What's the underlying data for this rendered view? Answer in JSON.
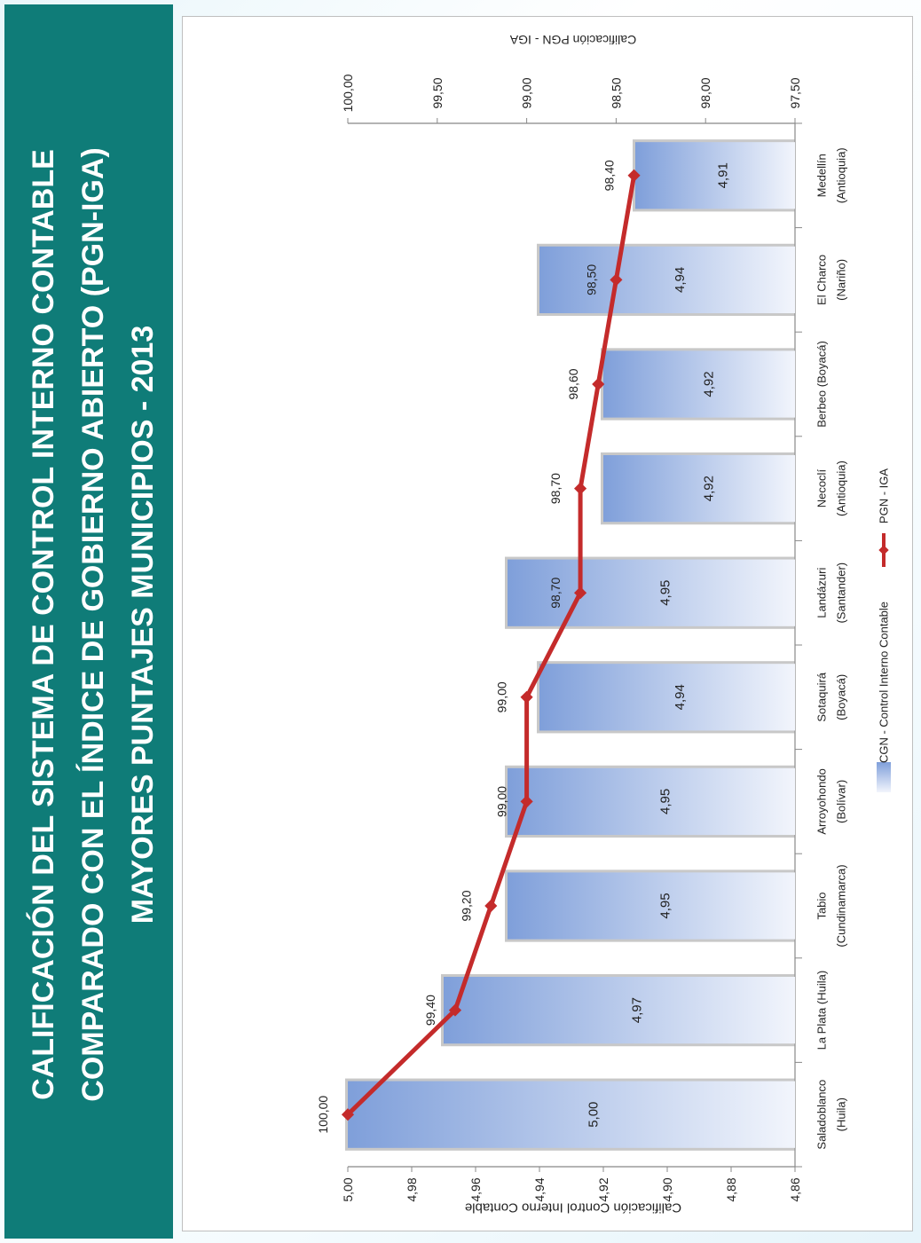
{
  "title": {
    "line1": "CALIFICACIÓN DEL SISTEMA DE CONTROL INTERNO CONTABLE",
    "line2": "COMPARADO CON EL ÍNDICE DE GOBIERNO ABIERTO (PGN-IGA)",
    "line3": "MAYORES PUNTAJES  MUNICIPIOS - 2013"
  },
  "colors": {
    "band": "#0f7c78",
    "bar_dark": "#7f9fda",
    "bar_light": "#f2f5fc",
    "line": "#c42b2b"
  },
  "chart_data": {
    "type": "bar",
    "categories": [
      [
        "Saladoblanco",
        "(Huila)"
      ],
      [
        "La Plata (Huila)"
      ],
      [
        "Tabio",
        "(Cundinamarca)"
      ],
      [
        "Arroyohondo",
        "(Bolívar)"
      ],
      [
        "Sotaquirá",
        "(Boyacá)"
      ],
      [
        "Landázuri",
        "(Santander)"
      ],
      [
        "Necoclí",
        "(Antioquia)"
      ],
      [
        "Berbeo (Boyacá)"
      ],
      [
        "El Charco",
        "(Nariño)"
      ],
      [
        "Medellín",
        "(Antioquia)"
      ]
    ],
    "series": [
      {
        "name": "CGN - Control Interno Contable",
        "type": "bar",
        "axis": "primary",
        "values": [
          5.0,
          4.97,
          4.95,
          4.95,
          4.94,
          4.95,
          4.92,
          4.92,
          4.94,
          4.91
        ],
        "labels": [
          "5,00",
          "4,97",
          "4,95",
          "4,95",
          "4,94",
          "4,95",
          "4,92",
          "4,92",
          "4,94",
          "4,91"
        ]
      },
      {
        "name": "PGN - IGA",
        "type": "line",
        "axis": "secondary",
        "values": [
          100.0,
          99.4,
          99.2,
          99.0,
          99.0,
          98.7,
          98.7,
          98.6,
          98.5,
          98.4
        ],
        "labels": [
          "100,00",
          "99,40",
          "99,20",
          "99,00",
          "99,00",
          "98,70",
          "98,70",
          "98,60",
          "98,50",
          "98,40"
        ]
      }
    ],
    "primary_axis": {
      "label": "Calificación Control Interno Contable",
      "range": [
        4.86,
        5.0
      ],
      "ticks": [
        "5,00",
        "4,98",
        "4,96",
        "4,94",
        "4,92",
        "4,90",
        "4,88",
        "4,86"
      ]
    },
    "secondary_axis": {
      "label": "Calificación PGN - IGA",
      "range": [
        97.5,
        100.0
      ],
      "ticks": [
        "100,00",
        "99,50",
        "99,00",
        "98,50",
        "98,00",
        "97,50"
      ]
    },
    "legend_position": "bottom",
    "orientation": "rotated 90° counter-clockwise"
  }
}
